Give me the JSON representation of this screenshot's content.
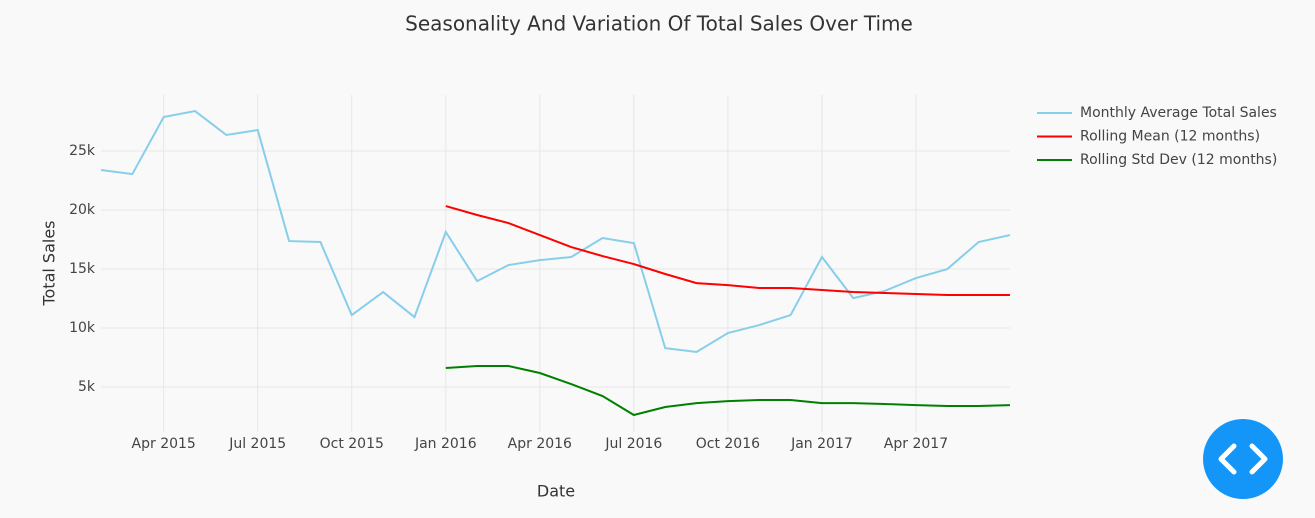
{
  "chart_data": {
    "type": "line",
    "title": "Seasonality And Variation Of Total Sales Over Time",
    "x_label": "Date",
    "y_label": "Total Sales",
    "x": [
      "2015-02",
      "2015-03",
      "2015-04",
      "2015-05",
      "2015-06",
      "2015-07",
      "2015-08",
      "2015-09",
      "2015-10",
      "2015-11",
      "2015-12",
      "2016-01",
      "2016-02",
      "2016-03",
      "2016-04",
      "2016-05",
      "2016-06",
      "2016-07",
      "2016-08",
      "2016-09",
      "2016-10",
      "2016-11",
      "2016-12",
      "2017-01",
      "2017-02",
      "2017-03",
      "2017-04",
      "2017-05",
      "2017-06",
      "2017-07"
    ],
    "series": [
      {
        "name": "Monthly Average Total Sales",
        "color": "#87ceeb",
        "values": [
          23390,
          23050,
          27880,
          28390,
          26360,
          26780,
          17370,
          17290,
          11100,
          13050,
          10930,
          18140,
          13980,
          15340,
          15760,
          16020,
          17630,
          17200,
          8300,
          7970,
          9580,
          10250,
          11100,
          16020,
          12540,
          13140,
          14240,
          15000,
          17290,
          17880
        ]
      },
      {
        "name": "Rolling Mean (12 months)",
        "color": "#ff0000",
        "values": [
          null,
          null,
          null,
          null,
          null,
          null,
          null,
          null,
          null,
          null,
          null,
          20340,
          19580,
          18900,
          17880,
          16860,
          16100,
          15420,
          14580,
          13810,
          13640,
          13390,
          13390,
          13220,
          13050,
          12970,
          12880,
          12800,
          12800,
          12800
        ]
      },
      {
        "name": "Rolling Std Dev (12 months)",
        "color": "#008000",
        "values": [
          null,
          null,
          null,
          null,
          null,
          null,
          null,
          null,
          null,
          null,
          null,
          6610,
          6780,
          6780,
          6190,
          5250,
          4240,
          2630,
          3310,
          3640,
          3810,
          3900,
          3900,
          3640,
          3640,
          3560,
          3470,
          3390,
          3390,
          3470
        ]
      }
    ],
    "xlim": [
      "2015-02",
      "2017-07"
    ],
    "xticks": [
      {
        "value": "2015-04",
        "label": "Apr 2015"
      },
      {
        "value": "2015-07",
        "label": "Jul 2015"
      },
      {
        "value": "2015-10",
        "label": "Oct 2015"
      },
      {
        "value": "2016-01",
        "label": "Jan 2016"
      },
      {
        "value": "2016-04",
        "label": "Apr 2016"
      },
      {
        "value": "2016-07",
        "label": "Jul 2016"
      },
      {
        "value": "2016-10",
        "label": "Oct 2016"
      },
      {
        "value": "2017-01",
        "label": "Jan 2017"
      },
      {
        "value": "2017-04",
        "label": "Apr 2017"
      }
    ],
    "ylim": [
      1190,
      29750
    ],
    "yticks": [
      {
        "value": 5000,
        "label": "5k"
      },
      {
        "value": 10000,
        "label": "10k"
      },
      {
        "value": 15000,
        "label": "15k"
      },
      {
        "value": 20000,
        "label": "20k"
      },
      {
        "value": 25000,
        "label": "25k"
      }
    ],
    "grid": true
  }
}
